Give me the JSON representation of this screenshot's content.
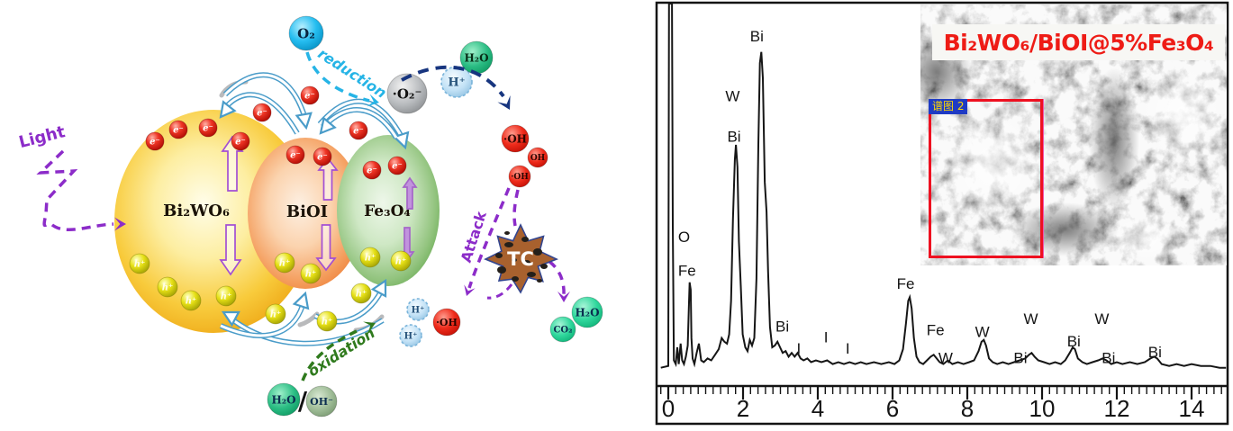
{
  "left_diagram": {
    "labels": {
      "light": "Light",
      "reduction": "reduction",
      "oxidation": "oxidation",
      "attack": "Attack",
      "slash": "/"
    },
    "spheres": [
      {
        "id": "bi2wo6",
        "label": "Bi₂WO₆"
      },
      {
        "id": "bioi",
        "label": "BiOI"
      },
      {
        "id": "fe3o4",
        "label": "Fe₃O₄"
      }
    ],
    "carriers": {
      "electron": "e⁻",
      "hole": "h⁺"
    },
    "species": [
      {
        "id": "o2",
        "label": "O₂"
      },
      {
        "id": "superoxide",
        "label": "·O₂⁻"
      },
      {
        "id": "h-plus-top",
        "label": "H⁺"
      },
      {
        "id": "h2o-top",
        "label": "H₂O"
      },
      {
        "id": "oh-main",
        "label": "·OH"
      },
      {
        "id": "oh-2",
        "label": "OH"
      },
      {
        "id": "oh-3",
        "label": "·OH"
      },
      {
        "id": "h-plus-1",
        "label": "H⁺"
      },
      {
        "id": "h-plus-2",
        "label": "H⁺"
      },
      {
        "id": "oh-bottom",
        "label": "·OH"
      },
      {
        "id": "h2o-left",
        "label": "H₂O"
      },
      {
        "id": "hydroxide",
        "label": "OH⁻"
      },
      {
        "id": "co2",
        "label": "CO₂"
      },
      {
        "id": "h2o-product",
        "label": "H₂O"
      }
    ],
    "tc_label": "TC",
    "colors": {
      "purple": "#8c2cc9",
      "cyan": "#26b4e6",
      "navy": "#17357f",
      "green": "#2f7a1d",
      "ribbon_blue": "#4a9cc9"
    }
  },
  "eds_panel": {
    "inset": {
      "title": "Bi₂WO₆/BiOI@5%Fe₃O₄",
      "title_color": "#ee1c16",
      "region_tag": "谱图 2"
    }
  },
  "chart_data": {
    "type": "line",
    "title": "",
    "xlabel": "",
    "ylabel": "",
    "xlim": [
      -0.27,
      14.95
    ],
    "x_ticks": [
      0,
      2,
      4,
      6,
      8,
      10,
      12,
      14
    ],
    "minor_tick_step": 0.2,
    "grid": false,
    "legend": false,
    "peak_labels": [
      {
        "label": "O",
        "kev": 0.42,
        "i": 37
      },
      {
        "label": "Fe",
        "kev": 0.5,
        "i": 28
      },
      {
        "label": "W",
        "kev": 1.72,
        "i": 75
      },
      {
        "label": "Bi",
        "kev": 1.76,
        "i": 64
      },
      {
        "label": "Bi",
        "kev": 2.37,
        "i": 91
      },
      {
        "label": "Bi",
        "kev": 3.05,
        "i": 13
      },
      {
        "label": "I",
        "kev": 3.49,
        "i": 7
      },
      {
        "label": "I",
        "kev": 4.22,
        "i": 10
      },
      {
        "label": "I",
        "kev": 4.8,
        "i": 7
      },
      {
        "label": "Fe",
        "kev": 6.35,
        "i": 24.5
      },
      {
        "label": "Fe",
        "kev": 7.15,
        "i": 12
      },
      {
        "label": "W",
        "kev": 7.42,
        "i": 4.5
      },
      {
        "label": "W",
        "kev": 8.4,
        "i": 11.5
      },
      {
        "label": "Bi",
        "kev": 9.42,
        "i": 4.5
      },
      {
        "label": "W",
        "kev": 9.7,
        "i": 15
      },
      {
        "label": "Bi",
        "kev": 10.85,
        "i": 9
      },
      {
        "label": "W",
        "kev": 11.6,
        "i": 15
      },
      {
        "label": "Bi",
        "kev": 11.78,
        "i": 4.5
      },
      {
        "label": "Bi",
        "kev": 13.02,
        "i": 6
      }
    ],
    "series": [
      {
        "name": "EDS spectrum",
        "points": [
          [
            -0.2,
            2
          ],
          [
            0.0,
            2.5
          ],
          [
            0.02,
            105
          ],
          [
            0.1,
            105
          ],
          [
            0.12,
            40
          ],
          [
            0.15,
            4
          ],
          [
            0.2,
            3
          ],
          [
            0.24,
            7.5
          ],
          [
            0.28,
            3
          ],
          [
            0.33,
            8.5
          ],
          [
            0.37,
            4
          ],
          [
            0.42,
            3
          ],
          [
            0.47,
            5
          ],
          [
            0.52,
            8
          ],
          [
            0.55,
            18
          ],
          [
            0.57,
            25
          ],
          [
            0.6,
            23
          ],
          [
            0.62,
            10
          ],
          [
            0.65,
            4.5
          ],
          [
            0.7,
            3
          ],
          [
            0.76,
            6
          ],
          [
            0.82,
            8.5
          ],
          [
            0.88,
            4
          ],
          [
            0.95,
            3.5
          ],
          [
            1.05,
            4.5
          ],
          [
            1.15,
            4
          ],
          [
            1.25,
            5.5
          ],
          [
            1.35,
            7
          ],
          [
            1.43,
            10
          ],
          [
            1.5,
            9
          ],
          [
            1.57,
            8.5
          ],
          [
            1.63,
            11
          ],
          [
            1.68,
            20
          ],
          [
            1.73,
            42
          ],
          [
            1.78,
            58
          ],
          [
            1.81,
            62
          ],
          [
            1.85,
            56
          ],
          [
            1.89,
            36
          ],
          [
            1.94,
            24
          ],
          [
            1.99,
            11
          ],
          [
            2.06,
            7.5
          ],
          [
            2.12,
            6.5
          ],
          [
            2.18,
            9.5
          ],
          [
            2.24,
            8
          ],
          [
            2.3,
            10
          ],
          [
            2.36,
            26
          ],
          [
            2.41,
            62
          ],
          [
            2.45,
            84
          ],
          [
            2.49,
            87
          ],
          [
            2.53,
            80
          ],
          [
            2.58,
            52
          ],
          [
            2.63,
            44
          ],
          [
            2.67,
            28
          ],
          [
            2.72,
            13
          ],
          [
            2.78,
            7.5
          ],
          [
            2.85,
            8
          ],
          [
            2.92,
            9
          ],
          [
            2.99,
            7.5
          ],
          [
            3.06,
            6
          ],
          [
            3.14,
            6.5
          ],
          [
            3.22,
            5
          ],
          [
            3.3,
            6
          ],
          [
            3.38,
            5
          ],
          [
            3.46,
            6
          ],
          [
            3.54,
            4.5
          ],
          [
            3.62,
            4
          ],
          [
            3.72,
            4.5
          ],
          [
            3.82,
            3.5
          ],
          [
            3.95,
            4
          ],
          [
            4.1,
            3.5
          ],
          [
            4.25,
            4
          ],
          [
            4.4,
            3
          ],
          [
            4.55,
            3.5
          ],
          [
            4.7,
            3
          ],
          [
            4.85,
            3.5
          ],
          [
            5.0,
            3
          ],
          [
            5.15,
            3.5
          ],
          [
            5.3,
            3
          ],
          [
            5.5,
            3.5
          ],
          [
            5.7,
            3
          ],
          [
            5.9,
            3.5
          ],
          [
            6.05,
            3
          ],
          [
            6.18,
            4
          ],
          [
            6.28,
            7
          ],
          [
            6.36,
            14
          ],
          [
            6.42,
            20
          ],
          [
            6.46,
            21
          ],
          [
            6.51,
            18
          ],
          [
            6.57,
            10
          ],
          [
            6.64,
            5
          ],
          [
            6.72,
            3.5
          ],
          [
            6.82,
            3
          ],
          [
            6.92,
            4
          ],
          [
            7.02,
            5
          ],
          [
            7.1,
            5.5
          ],
          [
            7.18,
            4.5
          ],
          [
            7.26,
            3.5
          ],
          [
            7.36,
            3
          ],
          [
            7.48,
            4
          ],
          [
            7.6,
            3
          ],
          [
            7.75,
            3.5
          ],
          [
            7.9,
            3
          ],
          [
            8.05,
            3.5
          ],
          [
            8.18,
            4
          ],
          [
            8.3,
            6.5
          ],
          [
            8.38,
            9
          ],
          [
            8.44,
            9.5
          ],
          [
            8.5,
            8
          ],
          [
            8.58,
            4.5
          ],
          [
            8.68,
            3.5
          ],
          [
            8.8,
            3
          ],
          [
            8.95,
            3.5
          ],
          [
            9.1,
            3
          ],
          [
            9.25,
            3.5
          ],
          [
            9.4,
            4
          ],
          [
            9.55,
            4.5
          ],
          [
            9.65,
            5.5
          ],
          [
            9.72,
            6
          ],
          [
            9.8,
            5
          ],
          [
            9.9,
            4
          ],
          [
            10.05,
            3.5
          ],
          [
            10.2,
            3
          ],
          [
            10.35,
            3.5
          ],
          [
            10.5,
            3
          ],
          [
            10.62,
            4
          ],
          [
            10.74,
            6
          ],
          [
            10.82,
            7.5
          ],
          [
            10.88,
            7
          ],
          [
            10.96,
            4.5
          ],
          [
            11.08,
            3.5
          ],
          [
            11.2,
            3
          ],
          [
            11.35,
            3.5
          ],
          [
            11.5,
            4
          ],
          [
            11.62,
            4.5
          ],
          [
            11.72,
            4
          ],
          [
            11.85,
            3
          ],
          [
            12.0,
            3.5
          ],
          [
            12.15,
            3
          ],
          [
            12.35,
            3.5
          ],
          [
            12.55,
            3
          ],
          [
            12.75,
            3.5
          ],
          [
            12.9,
            4.5
          ],
          [
            13.0,
            5
          ],
          [
            13.08,
            4.5
          ],
          [
            13.2,
            3
          ],
          [
            13.4,
            2.5
          ],
          [
            13.6,
            3
          ],
          [
            13.8,
            2.5
          ],
          [
            14.0,
            3
          ],
          [
            14.25,
            2.5
          ],
          [
            14.5,
            2.5
          ],
          [
            14.75,
            2
          ],
          [
            14.92,
            2
          ]
        ]
      }
    ]
  }
}
